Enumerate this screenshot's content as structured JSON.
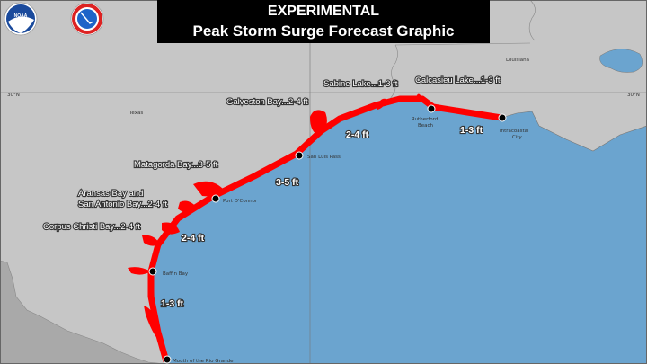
{
  "title": {
    "line1": "EXPERIMENTAL",
    "line2": "Peak Storm Surge Forecast Graphic"
  },
  "logos": {
    "noaa": "NOAA",
    "nws": "NATIONAL WEATHER SERVICE"
  },
  "colors": {
    "land": "#c6c6c6",
    "mexico": "#a9a9a9",
    "water": "#6ba4cf",
    "surge": "#ff0000",
    "title_bg": "#000000"
  },
  "grid": {
    "lat_label_left": "30°N",
    "lat_label_right": "30°N"
  },
  "states": {
    "texas": "Texas",
    "louisiana": "Louisiana"
  },
  "bay_labels": [
    {
      "text": "Sabine Lake...1-3 ft"
    },
    {
      "text": "Calcasieu Lake...1-3 ft"
    },
    {
      "text": "Galveston Bay...2-4 ft"
    },
    {
      "text": "Matagorda Bay...3-5 ft"
    },
    {
      "text": "Aransas Bay and"
    },
    {
      "text": "San Antonio Bay...2-4 ft"
    },
    {
      "text": "Corpus Christi Bay...2-4 ft"
    }
  ],
  "coast_ranges": [
    "2-4 ft",
    "1-3 ft",
    "3-5 ft",
    "2-4 ft",
    "1-3 ft"
  ],
  "breakpoints": [
    "Rutherford",
    "Beach",
    "Intracoastal",
    "City",
    "San Luis Pass",
    "Port O'Connor",
    "Baffin Bay",
    "Mouth of the Rio Grande"
  ]
}
